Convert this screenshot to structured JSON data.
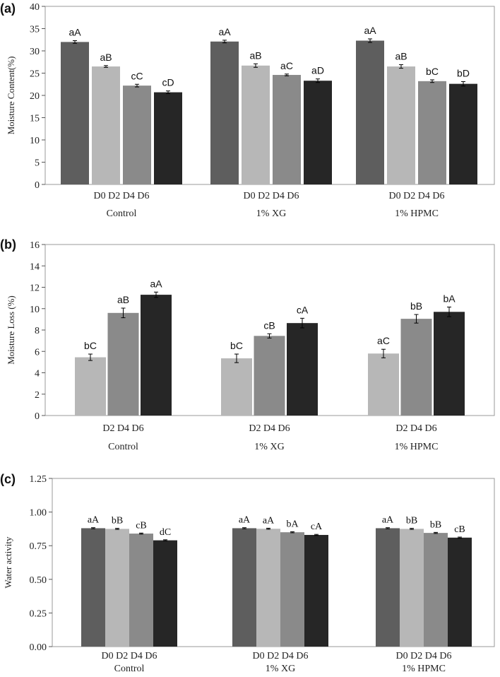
{
  "chart_data": [
    {
      "type": "bar",
      "panel_label": "(a)",
      "ylabel": "Moisture Content(%)",
      "xlabel": "",
      "ylim": [
        0,
        40
      ],
      "yticks": [
        "0",
        "5",
        "10",
        "15",
        "20",
        "25",
        "30",
        "35",
        "40"
      ],
      "groups": [
        "Control",
        "1% XG",
        "1% HPMC"
      ],
      "subcategory_label": "D0 D2 D4 D6",
      "series": [
        {
          "name": "D0",
          "color": "#5e5e5e",
          "values": [
            32.0,
            32.1,
            32.3
          ],
          "errors": [
            0.3,
            0.3,
            0.4
          ],
          "labels": [
            "aA",
            "aA",
            "aA"
          ]
        },
        {
          "name": "D2",
          "color": "#b7b7b7",
          "values": [
            26.5,
            26.7,
            26.5
          ],
          "errors": [
            0.2,
            0.4,
            0.4
          ],
          "labels": [
            "aB",
            "aB",
            "aB"
          ]
        },
        {
          "name": "D4",
          "color": "#8a8a8a",
          "values": [
            22.2,
            24.6,
            23.2
          ],
          "errors": [
            0.3,
            0.2,
            0.3
          ],
          "labels": [
            "cC",
            "aC",
            "bC"
          ]
        },
        {
          "name": "D6",
          "color": "#262626",
          "values": [
            20.7,
            23.3,
            22.6
          ],
          "errors": [
            0.3,
            0.4,
            0.5
          ],
          "labels": [
            "cD",
            "aD",
            "bD"
          ]
        }
      ]
    },
    {
      "type": "bar",
      "panel_label": "(b)",
      "ylabel": "Moisture Loss (%)",
      "xlabel": "",
      "ylim": [
        0,
        16
      ],
      "yticks": [
        "0",
        "2",
        "4",
        "6",
        "8",
        "10",
        "12",
        "14",
        "16"
      ],
      "groups": [
        "Control",
        "1% XG",
        "1% HPMC"
      ],
      "subcategory_label": "D2 D4 D6",
      "series": [
        {
          "name": "D2",
          "color": "#b7b7b7",
          "values": [
            5.45,
            5.35,
            5.8
          ],
          "errors": [
            0.3,
            0.4,
            0.4
          ],
          "labels": [
            "bC",
            "bC",
            "aC"
          ]
        },
        {
          "name": "D4",
          "color": "#8a8a8a",
          "values": [
            9.6,
            7.45,
            9.05
          ],
          "errors": [
            0.45,
            0.2,
            0.4
          ],
          "labels": [
            "aB",
            "cB",
            "bB"
          ]
        },
        {
          "name": "D6",
          "color": "#262626",
          "values": [
            11.3,
            8.65,
            9.7
          ],
          "errors": [
            0.25,
            0.45,
            0.45
          ],
          "labels": [
            "aA",
            "cA",
            "bA"
          ]
        }
      ]
    },
    {
      "type": "bar",
      "panel_label": "(c)",
      "ylabel": "Water activity",
      "xlabel": "",
      "ylim": [
        0,
        1.25
      ],
      "yticks": [
        "0.00",
        "0.25",
        "0.50",
        "0.75",
        "1.00",
        "1.25"
      ],
      "groups": [
        "Control",
        "1% XG",
        "1% HPMC"
      ],
      "subcategory_label": "D0 D2 D4 D6",
      "series": [
        {
          "name": "D0",
          "color": "#5e5e5e",
          "values": [
            0.88,
            0.88,
            0.88
          ],
          "errors": [
            0.004,
            0.004,
            0.004
          ],
          "labels": [
            "aA",
            "aA",
            "aA"
          ]
        },
        {
          "name": "D2",
          "color": "#b7b7b7",
          "values": [
            0.875,
            0.876,
            0.875
          ],
          "errors": [
            0.004,
            0.004,
            0.004
          ],
          "labels": [
            "bB",
            "aA",
            "bB"
          ]
        },
        {
          "name": "D4",
          "color": "#8a8a8a",
          "values": [
            0.84,
            0.85,
            0.845
          ],
          "errors": [
            0.004,
            0.004,
            0.004
          ],
          "labels": [
            "cB",
            "bA",
            "bB"
          ]
        },
        {
          "name": "D6",
          "color": "#262626",
          "values": [
            0.79,
            0.83,
            0.81
          ],
          "errors": [
            0.004,
            0.004,
            0.004
          ],
          "labels": [
            "dC",
            "cA",
            "cB"
          ]
        }
      ]
    }
  ]
}
